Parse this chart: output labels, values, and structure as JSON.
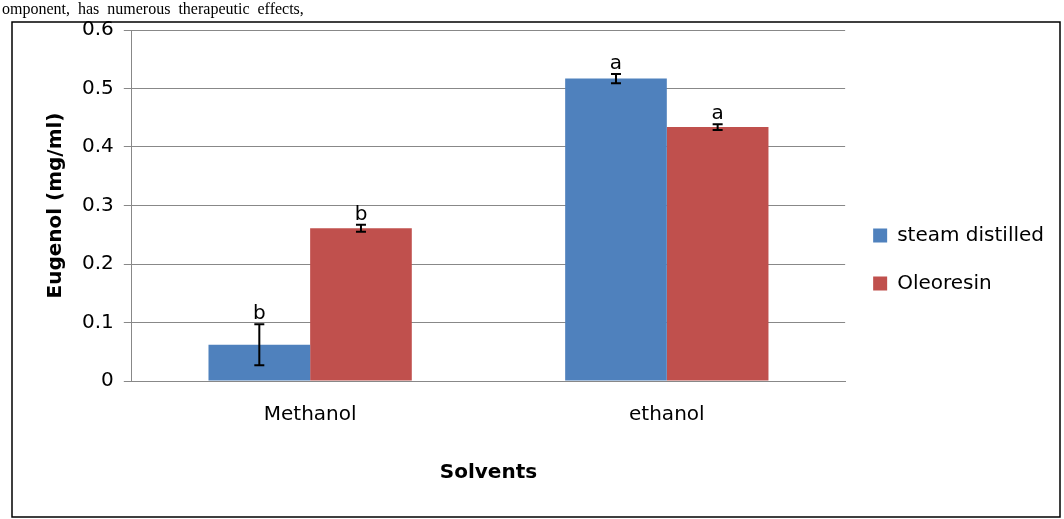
{
  "chart_data": {
    "type": "bar",
    "xlabel": "Solvents",
    "ylabel": "Eugenol (mg/ml)",
    "categories": [
      "Methanol",
      "ethanol"
    ],
    "series": [
      {
        "name": "steam distilled",
        "color": "#4f81bd",
        "values": [
          0.062,
          0.517
        ],
        "errors": [
          0.035,
          0.008
        ]
      },
      {
        "name": "Oleoresin",
        "color": "#c0504d",
        "values": [
          0.261,
          0.434
        ],
        "errors": [
          0.006,
          0.005
        ]
      }
    ],
    "ylim": [
      0,
      0.6
    ],
    "yticks": [
      0,
      0.1,
      0.2,
      0.3,
      0.4,
      0.5,
      0.6
    ],
    "grid": "y",
    "legend": "right",
    "annotations": [
      "omponent,  has  numerous  therapeutic  effects,",
      {
        "text": "b",
        "x": "Methanol",
        "y": 0.097
      },
      {
        "text": "b",
        "x": "Methanol",
        "y": 0.267
      },
      {
        "text": "a",
        "x": "ethanol",
        "y": 0.525
      },
      {
        "text": "a",
        "x": "ethanol",
        "y": 0.439
      }
    ]
  }
}
